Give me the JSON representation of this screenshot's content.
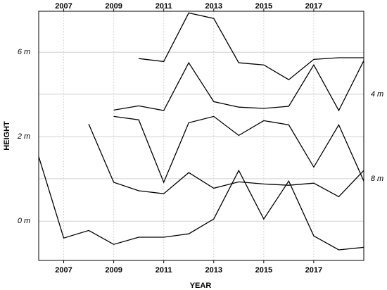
{
  "chart_data": {
    "type": "line",
    "x_label": "YEAR",
    "y_label": "HEIGHT",
    "x": [
      2006,
      2007,
      2008,
      2009,
      2010,
      2011,
      2012,
      2013,
      2014,
      2015,
      2016,
      2017,
      2018,
      2019
    ],
    "series": [
      {
        "color": "#000000",
        "values": [
          null,
          null,
          null,
          null,
          3.85,
          3.78,
          4.93,
          4.8,
          3.75,
          3.7,
          3.35,
          3.83,
          3.87,
          3.87
        ]
      },
      {
        "color": "#000000",
        "values": [
          null,
          null,
          null,
          2.63,
          2.73,
          2.62,
          3.75,
          2.83,
          2.7,
          2.67,
          2.72,
          3.7,
          2.62,
          3.8
        ]
      },
      {
        "color": "#000000",
        "values": [
          null,
          null,
          2.3,
          0.92,
          0.72,
          0.65,
          1.15,
          0.78,
          0.93,
          0.88,
          0.85,
          0.9,
          0.58,
          1.2
        ]
      },
      {
        "color": "#000000",
        "values": [
          null,
          null,
          null,
          2.48,
          2.4,
          0.92,
          2.33,
          2.48,
          2.03,
          2.38,
          2.28,
          1.28,
          2.28,
          0.95
        ]
      },
      {
        "color": "#000000",
        "values": [
          1.53,
          -0.4,
          -0.22,
          -0.55,
          -0.38,
          -0.38,
          -0.3,
          0.05,
          1.2,
          0.05,
          0.95,
          -0.35,
          -0.68,
          -0.62
        ]
      }
    ],
    "xlim": [
      2006,
      2019
    ],
    "xticks": [
      2007,
      2009,
      2011,
      2013,
      2015,
      2017
    ],
    "ylim": [
      -0.93,
      4.97
    ],
    "yticks": [
      {
        "value": 0,
        "label": "0 m"
      },
      {
        "value": 2,
        "label": "2 m"
      }
    ],
    "y2lim": [
      11.87,
      0.07
    ],
    "y2ticks": [
      {
        "value": 4,
        "label": "4 m"
      },
      {
        "value": 8,
        "label": "8 m"
      }
    ],
    "annotations": [
      {
        "text": "6 m",
        "y": 4
      }
    ],
    "grid": true
  }
}
